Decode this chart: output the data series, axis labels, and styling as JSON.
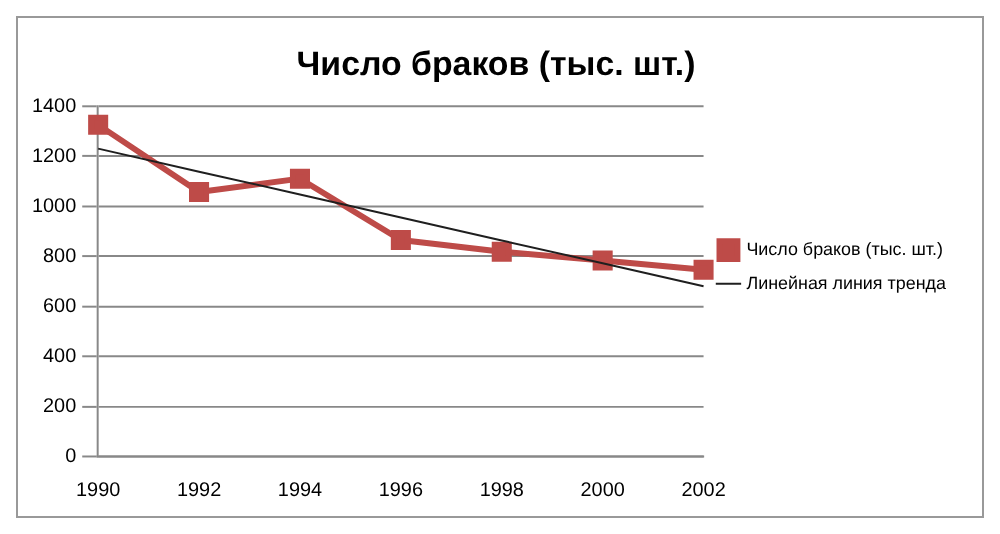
{
  "chart_data": {
    "type": "line",
    "title": "Число браков (тыс. шт.)",
    "categories": [
      "1990",
      "1992",
      "1994",
      "1996",
      "1998",
      "2000",
      "2002"
    ],
    "series": [
      {
        "name": "Число браков (тыс. шт.)",
        "color": "#be4b48",
        "values": [
          1325,
          1057,
          1110,
          865,
          818,
          783,
          746
        ],
        "marker": "square"
      },
      {
        "name": "Линейная линия тренда",
        "color": "#1f1f1f",
        "values": [
          1230,
          1138,
          1047,
          955,
          863,
          772,
          680
        ],
        "marker": "none"
      }
    ],
    "ylim": [
      0,
      1400
    ],
    "yticks": [
      0,
      200,
      400,
      600,
      800,
      1000,
      1200,
      1400
    ],
    "grid": "y",
    "legend": "right"
  }
}
